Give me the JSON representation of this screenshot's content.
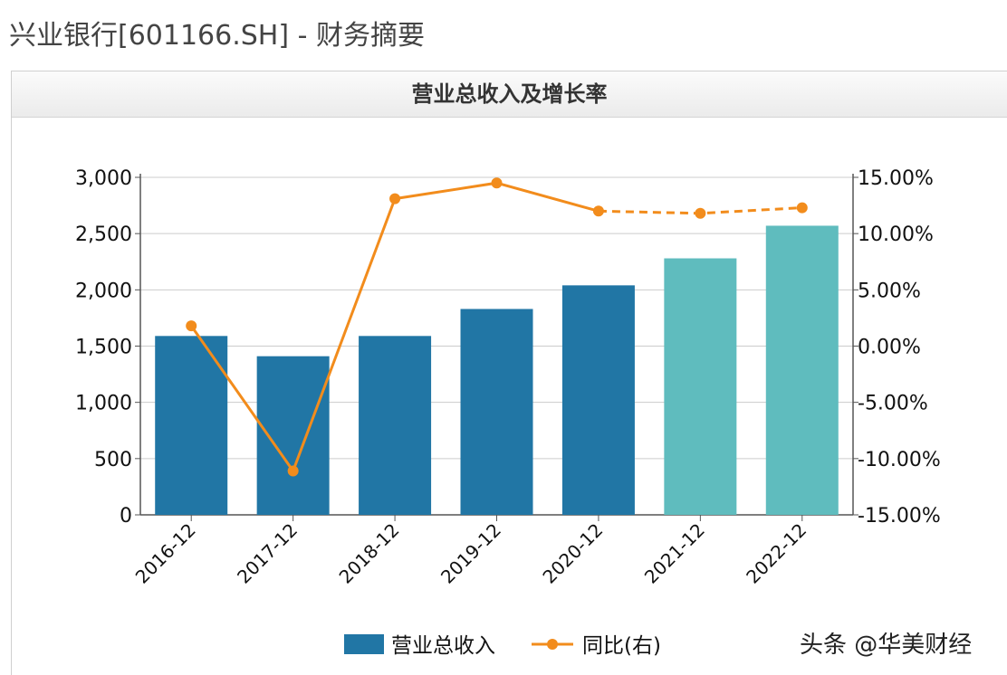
{
  "page": {
    "title": "兴业银行[601166.SH] - 财务摘要"
  },
  "watermark": "头条 @华美财经",
  "colors": {
    "bar_actual": "#2176a5",
    "bar_forecast": "#5fbcbe",
    "line": "#f28c1c",
    "grid": "#cccccc",
    "axis": "#555555"
  },
  "chart_data": {
    "type": "bar",
    "title": "营业总收入及增长率",
    "categories": [
      "2016-12",
      "2017-12",
      "2018-12",
      "2019-12",
      "2020-12",
      "2021-12",
      "2022-12"
    ],
    "series": [
      {
        "name": "营业总收入",
        "type": "bar",
        "axis": "left",
        "values": [
          1590,
          1410,
          1590,
          1830,
          2040,
          2280,
          2570
        ],
        "forecast_from_index": 5
      },
      {
        "name": "同比(右)",
        "type": "line",
        "axis": "right",
        "values": [
          1.8,
          -11.1,
          13.1,
          14.5,
          12.0,
          11.8,
          12.3
        ],
        "dashed_from_index": 4
      }
    ],
    "y_left": {
      "min": 0,
      "max": 3000,
      "ticks": [
        0,
        500,
        1000,
        1500,
        2000,
        2500,
        3000
      ],
      "tick_labels": [
        "0",
        "500",
        "1,000",
        "1,500",
        "2,000",
        "2,500",
        "3,000"
      ]
    },
    "y_right": {
      "min": -15,
      "max": 15,
      "ticks": [
        -15,
        -10,
        -5,
        0,
        5,
        10,
        15
      ],
      "tick_labels": [
        "-15.00%",
        "-10.00%",
        "-5.00%",
        "0.00%",
        "5.00%",
        "10.00%",
        "15.00%"
      ]
    },
    "grid": true,
    "legend_position": "bottom"
  }
}
